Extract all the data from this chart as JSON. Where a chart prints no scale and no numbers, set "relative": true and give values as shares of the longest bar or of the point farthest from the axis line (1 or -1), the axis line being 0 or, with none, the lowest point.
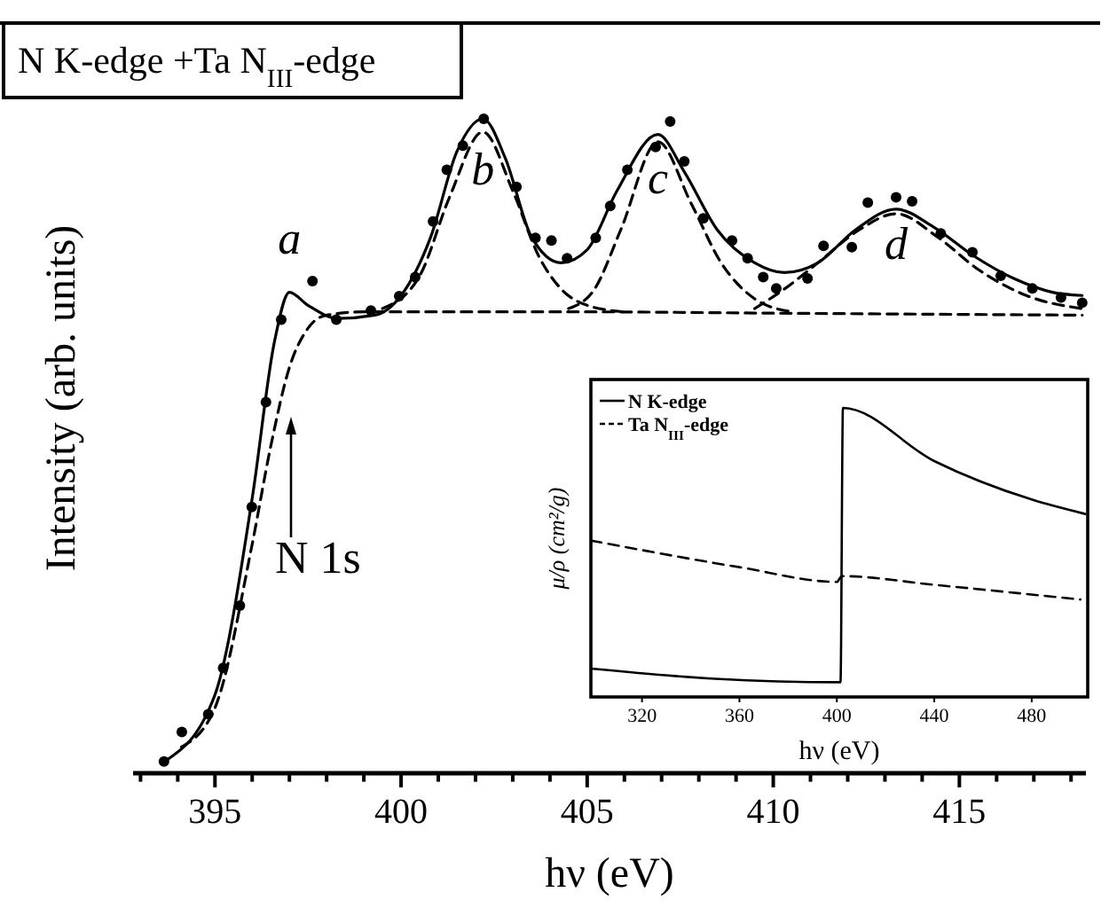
{
  "chart_data": [
    {
      "type": "line",
      "title": "N K-edge +Ta N$_{III}$-edge",
      "xlabel": "hν (eV)",
      "ylabel": "Intensity (arb. units)",
      "relative": true,
      "tick_labels": "x",
      "xlim": [
        392.8,
        418.4
      ],
      "xticks": [
        {
          "value": 393,
          "label": null
        },
        {
          "value": 394,
          "label": null
        },
        395,
        {
          "value": 396,
          "label": null
        },
        {
          "value": 397,
          "label": null
        },
        {
          "value": 398,
          "label": null
        },
        {
          "value": 399,
          "label": null
        },
        400,
        {
          "value": 401,
          "label": null
        },
        {
          "value": 402,
          "label": null
        },
        {
          "value": 403,
          "label": null
        },
        {
          "value": 404,
          "label": null
        },
        405,
        {
          "value": 406,
          "label": null
        },
        {
          "value": 407,
          "label": null
        },
        {
          "value": 408,
          "label": null
        },
        {
          "value": 409,
          "label": null
        },
        410,
        {
          "value": 411,
          "label": null
        },
        {
          "value": 412,
          "label": null
        },
        {
          "value": 413,
          "label": null
        },
        {
          "value": 414,
          "label": null
        },
        415,
        {
          "value": 416,
          "label": null
        },
        {
          "value": 417,
          "label": null
        },
        {
          "value": 418,
          "label": null
        }
      ],
      "series": [
        {
          "type": "scatter",
          "marker": "circle",
          "color": "#000000",
          "x": [
            393.63,
            394.11,
            394.82,
            395.22,
            395.67,
            395.99,
            396.37,
            396.78,
            397.62,
            398.26,
            399.19,
            399.95,
            400.38,
            400.86,
            401.23,
            401.66,
            402.22,
            403.1,
            403.61,
            404.04,
            404.46,
            405.23,
            405.62,
            406.08,
            406.84,
            407.23,
            407.61,
            408.12,
            408.89,
            409.31,
            409.73,
            410.08,
            410.92,
            411.35,
            412.11,
            412.54,
            413.3,
            413.73,
            414.5,
            415.35,
            416.11,
            416.96,
            417.73,
            418.3
          ],
          "values": [
            0.018,
            0.063,
            0.09,
            0.161,
            0.256,
            0.407,
            0.567,
            0.693,
            0.752,
            0.693,
            0.707,
            0.729,
            0.758,
            0.843,
            0.922,
            0.959,
            1.0,
            0.896,
            0.818,
            0.814,
            0.787,
            0.818,
            0.867,
            0.922,
            0.957,
            0.996,
            0.935,
            0.848,
            0.814,
            0.787,
            0.758,
            0.741,
            0.756,
            0.806,
            0.804,
            0.872,
            0.88,
            0.874,
            0.825,
            0.796,
            0.76,
            0.741,
            0.727,
            0.719
          ]
        },
        {
          "line_style": "solid",
          "color": "#000000",
          "x": [
            393.7,
            395.0,
            396.0,
            396.6,
            397.0,
            397.5,
            398.3,
            399.3,
            400.0,
            400.8,
            401.5,
            402.2,
            402.8,
            403.5,
            404.3,
            405.0,
            405.8,
            406.9,
            407.6,
            408.5,
            409.5,
            410.3,
            411.2,
            412.2,
            413.3,
            414.3,
            415.4,
            416.5,
            417.5,
            418.3
          ],
          "values": [
            0.02,
            0.12,
            0.42,
            0.66,
            0.735,
            0.715,
            0.695,
            0.7,
            0.73,
            0.82,
            0.95,
            1.0,
            0.94,
            0.82,
            0.78,
            0.8,
            0.89,
            0.976,
            0.92,
            0.83,
            0.78,
            0.765,
            0.78,
            0.83,
            0.862,
            0.835,
            0.79,
            0.755,
            0.735,
            0.73
          ]
        },
        {
          "line_style": "dashed",
          "color": "#000000",
          "x": [
            394.1,
            395.0,
            396.0,
            396.5,
            397.0,
            397.5,
            398.0,
            399.0,
            402.0,
            405.0,
            410.0,
            418.3
          ],
          "values": [
            0.04,
            0.1,
            0.35,
            0.5,
            0.62,
            0.68,
            0.7,
            0.705,
            0.705,
            0.705,
            0.703,
            0.7
          ]
        },
        {
          "line_style": "dashed",
          "color": "#000000",
          "x": [
            399.5,
            400.5,
            401.3,
            402.2,
            403.0,
            403.7,
            404.3,
            405.0,
            406.0
          ],
          "values": [
            0.71,
            0.76,
            0.88,
            0.98,
            0.89,
            0.79,
            0.74,
            0.715,
            0.705
          ]
        },
        {
          "line_style": "dashed",
          "color": "#000000",
          "x": [
            404.5,
            405.2,
            405.9,
            406.9,
            407.8,
            408.6,
            409.5,
            410.5
          ],
          "values": [
            0.71,
            0.74,
            0.83,
            0.965,
            0.87,
            0.78,
            0.725,
            0.705
          ]
        },
        {
          "line_style": "dashed",
          "color": "#000000",
          "x": [
            409.5,
            410.3,
            411.2,
            412.3,
            413.3,
            414.4,
            415.5,
            416.8,
            418.3
          ],
          "values": [
            0.71,
            0.74,
            0.78,
            0.83,
            0.855,
            0.82,
            0.77,
            0.73,
            0.71
          ]
        }
      ],
      "annotations": [
        {
          "text": "a",
          "x": 397.0,
          "y": 0.735
        },
        {
          "text": "b",
          "x": 402.2,
          "y": 1.0
        },
        {
          "text": "c",
          "x": 406.9,
          "y": 0.976
        },
        {
          "text": "d",
          "x": 413.3,
          "y": 0.862
        },
        "N 1s"
      ]
    },
    {
      "type": "line",
      "xlabel": "hν (eV)",
      "ylabel": "μ/ρ (cm²/g)",
      "relative": true,
      "tick_labels": "x",
      "legend": "top left",
      "xlim": [
        299,
        503
      ],
      "xticks": [
        320,
        360,
        400,
        440,
        480
      ],
      "series": [
        {
          "name": "N K-edge",
          "line_style": "solid",
          "color": "#000000",
          "x": [
            299,
            350,
            401.5,
            402.5,
            440,
            480,
            502
          ],
          "values": [
            0.098,
            0.063,
            0.051,
            1.0,
            0.816,
            0.683,
            0.633
          ]
        },
        {
          "name": "Ta N$_{III}$-edge",
          "line_style": "dashed",
          "color": "#000000",
          "x": [
            299,
            360,
            400,
            402,
            440,
            500
          ],
          "values": [
            0.541,
            0.449,
            0.398,
            0.418,
            0.388,
            0.337
          ]
        }
      ]
    }
  ]
}
